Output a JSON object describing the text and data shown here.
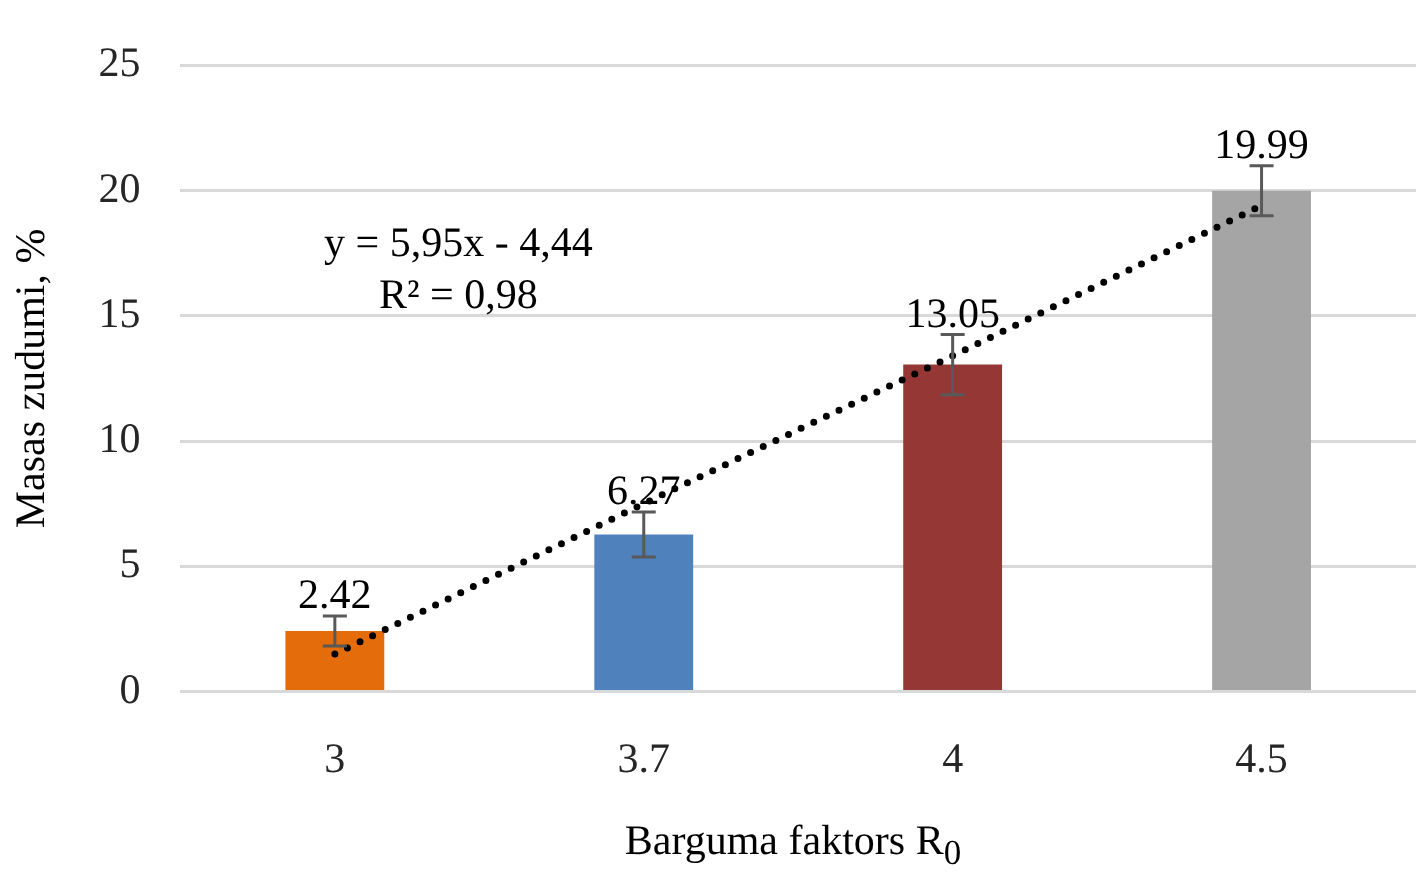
{
  "chart_data": {
    "type": "bar",
    "categories": [
      "3",
      "3.7",
      "4",
      "4.5"
    ],
    "series": [
      {
        "values": [
          2.42,
          6.27,
          13.05,
          19.99
        ],
        "colors": [
          "#e46c0a",
          "#4f81bd",
          "#953735",
          "#a5a5a5"
        ],
        "errors": [
          0.6,
          0.9,
          1.2,
          1.0
        ],
        "value_labels": [
          "2.42",
          "6.27",
          "13.05",
          "19.99"
        ]
      },
      {
        "type": "line",
        "x": [
          "3",
          "3.7",
          "4",
          "4.5"
        ],
        "values": [
          1.5,
          7.5,
          13.4,
          19.4
        ],
        "color": "#000000",
        "line_style": "dotted"
      }
    ],
    "xlabel": "Barguma faktors R$_{0}$",
    "ylabel": "Masas zudumi, %",
    "ylim": [
      0,
      25
    ],
    "yticks": [
      0,
      5,
      10,
      15,
      20,
      25
    ],
    "grid": "y",
    "annotations": [
      "y = 5,95x - 4,44",
      "R² = 0,98"
    ]
  }
}
